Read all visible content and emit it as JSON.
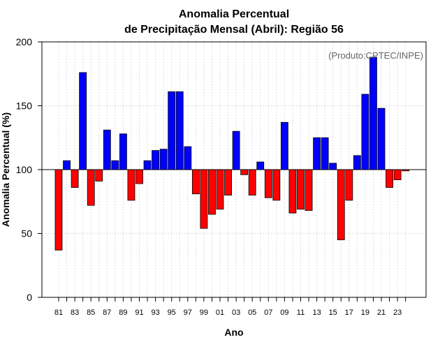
{
  "chart_data": {
    "type": "bar",
    "title_line1": "Anomalia Percentual",
    "title_line2": "de Precipitação Mensal (Abril): Região 56",
    "xlabel": "Ano",
    "ylabel": "Anomalia Percentual (%)",
    "credit": "(Produto:CPTEC/INPE)",
    "baseline": 100,
    "ylim": [
      0,
      200
    ],
    "yticks": [
      "0",
      "50",
      "100",
      "150",
      "200"
    ],
    "xtick_labels": [
      "81",
      "83",
      "85",
      "87",
      "89",
      "91",
      "93",
      "95",
      "97",
      "99",
      "01",
      "03",
      "05",
      "07",
      "09",
      "11",
      "13",
      "15",
      "17",
      "19",
      "21",
      "23"
    ],
    "categories": [
      "1981",
      "1982",
      "1983",
      "1984",
      "1985",
      "1986",
      "1987",
      "1988",
      "1989",
      "1990",
      "1991",
      "1992",
      "1993",
      "1994",
      "1995",
      "1996",
      "1997",
      "1998",
      "1999",
      "2000",
      "2001",
      "2002",
      "2003",
      "2004",
      "2005",
      "2006",
      "2007",
      "2008",
      "2009",
      "2010",
      "2011",
      "2012",
      "2013",
      "2014",
      "2015",
      "2016",
      "2017",
      "2018",
      "2019",
      "2020",
      "2021",
      "2022",
      "2023",
      "2024"
    ],
    "values": [
      37,
      107,
      86,
      176,
      72,
      91,
      131,
      107,
      128,
      76,
      89,
      107,
      115,
      116,
      161,
      161,
      118,
      81,
      54,
      65,
      69,
      80,
      130,
      96,
      80,
      106,
      78,
      76,
      137,
      66,
      69,
      68,
      125,
      125,
      105,
      45,
      76,
      111,
      159,
      188,
      148,
      86,
      92,
      99
    ],
    "colors": {
      "positive": "#0000ff",
      "negative": "#ff0000",
      "grid": "#dddddd",
      "text": "#000000",
      "credit": "#666666"
    }
  }
}
